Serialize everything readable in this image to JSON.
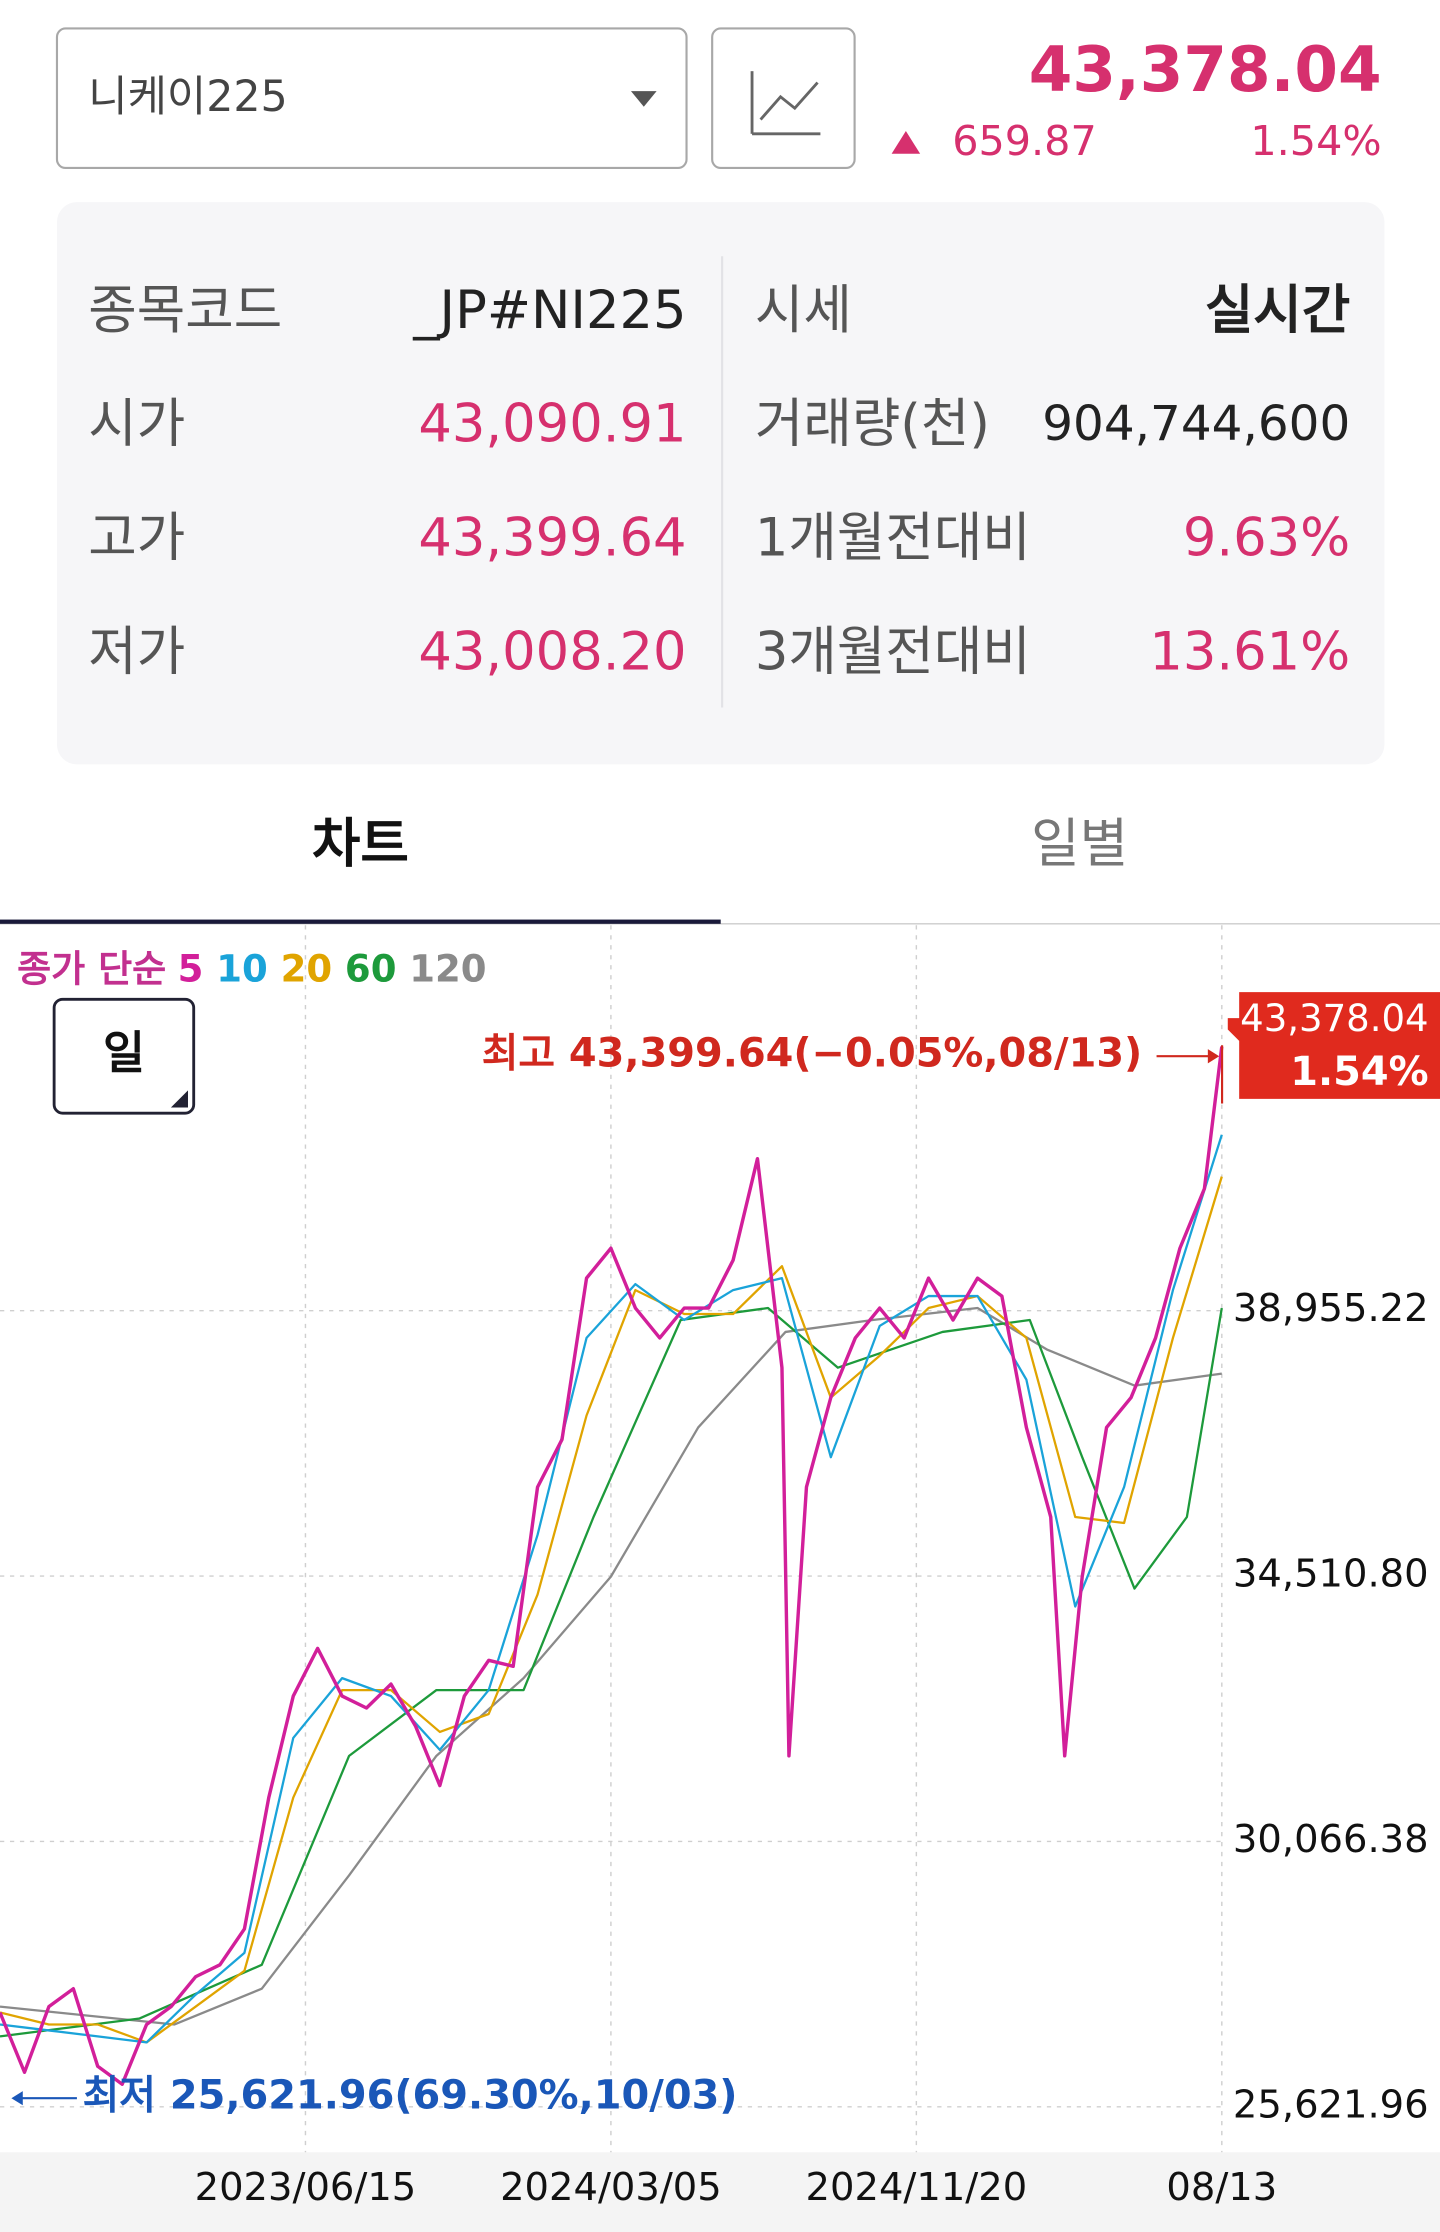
{
  "header": {
    "selector": "니케이225",
    "price": "43,378.04",
    "change": "659.87",
    "change_pct": "1.54%"
  },
  "info": {
    "rows": [
      [
        "종목코드",
        "_JP#NI225",
        "시세",
        "실시간"
      ],
      [
        "시가",
        "43,090.91",
        "거래량(천)",
        "904,744,600"
      ],
      [
        "고가",
        "43,399.64",
        "1개월전대비",
        "9.63%"
      ],
      [
        "저가",
        "43,008.20",
        "3개월전대비",
        "13.61%"
      ]
    ]
  },
  "tabs": [
    "차트",
    "일별"
  ],
  "chart_data": {
    "type": "line",
    "period_button": "일",
    "legend_title": "종가 단순",
    "grid": true,
    "xlim": [
      0,
      825
    ],
    "ylim": [
      24860,
      45410
    ],
    "xticks": [
      {
        "value": 175,
        "label": "2023/06/15"
      },
      {
        "value": 350,
        "label": "2024/03/05"
      },
      {
        "value": 525,
        "label": "2024/11/20"
      },
      {
        "value": 700,
        "label": "08/13"
      }
    ],
    "yticks": [
      {
        "value": 25621.96,
        "label": "25,621.96"
      },
      {
        "value": 30066.38,
        "label": "30,066.38"
      },
      {
        "value": 34510.8,
        "label": "34,510.80"
      },
      {
        "value": 38955.22,
        "label": "38,955.22"
      }
    ],
    "last_price": {
      "value": 43378.04,
      "label": "43,378.04",
      "change_label": "1.54%"
    },
    "high": {
      "value": 43399.64,
      "label": "최고 43,399.64(−0.05%,08/13)"
    },
    "low": {
      "value": 25621.96,
      "label": "최저 25,621.96(69.30%,10/03)"
    },
    "series": [
      {
        "name": "5",
        "color": "#d21f9a",
        "x": [
          0,
          14,
          28,
          42,
          56,
          70,
          84,
          98,
          112,
          126,
          140,
          154,
          168,
          182,
          196,
          210,
          224,
          238,
          252,
          266,
          280,
          294,
          308,
          322,
          336,
          350,
          364,
          378,
          392,
          406,
          420,
          434,
          448,
          452,
          462,
          476,
          490,
          504,
          518,
          532,
          546,
          560,
          574,
          588,
          602,
          610,
          620,
          634,
          648,
          662,
          676,
          690,
          700
        ],
        "values": [
          27200,
          26200,
          27300,
          27600,
          26300,
          26000,
          27000,
          27300,
          27800,
          28000,
          28600,
          30800,
          32500,
          33300,
          32500,
          32300,
          32700,
          32000,
          31000,
          32500,
          33100,
          33000,
          36000,
          36800,
          39500,
          40000,
          39000,
          38500,
          39000,
          39000,
          39800,
          41500,
          38000,
          31500,
          36000,
          37500,
          38500,
          39000,
          38500,
          39500,
          38800,
          39500,
          39200,
          37000,
          35500,
          31500,
          34500,
          37000,
          37500,
          38500,
          40000,
          41000,
          43378.04
        ]
      },
      {
        "name": "10",
        "color": "#1aa3d9",
        "x": [
          0,
          28,
          56,
          84,
          112,
          140,
          168,
          196,
          224,
          252,
          280,
          308,
          336,
          364,
          392,
          420,
          448,
          476,
          504,
          532,
          560,
          588,
          616,
          644,
          672,
          700
        ],
        "values": [
          27000,
          26900,
          26800,
          26700,
          27500,
          28200,
          31800,
          32800,
          32500,
          31600,
          32600,
          35200,
          38500,
          39400,
          38800,
          39300,
          39500,
          36500,
          38700,
          39200,
          39200,
          37800,
          34000,
          36000,
          39300,
          41900
        ]
      },
      {
        "name": "20",
        "color": "#e0a400",
        "x": [
          0,
          28,
          56,
          84,
          112,
          140,
          168,
          196,
          224,
          252,
          280,
          308,
          336,
          364,
          392,
          420,
          448,
          476,
          504,
          532,
          560,
          588,
          616,
          644,
          672,
          700
        ],
        "values": [
          27200,
          27000,
          27000,
          26700,
          27300,
          27900,
          30800,
          32600,
          32600,
          31900,
          32200,
          34200,
          37200,
          39300,
          38900,
          38900,
          39700,
          37500,
          38200,
          39000,
          39200,
          38500,
          35500,
          35400,
          38500,
          41200
        ]
      },
      {
        "name": "60",
        "color": "#1d9a3b",
        "x": [
          0,
          80,
          150,
          200,
          250,
          300,
          340,
          390,
          440,
          480,
          540,
          590,
          620,
          650,
          680,
          700
        ],
        "values": [
          26800,
          27100,
          28000,
          31500,
          32600,
          32600,
          35500,
          38800,
          39000,
          38000,
          38600,
          38800,
          36500,
          34300,
          35500,
          39000
        ]
      },
      {
        "name": "120",
        "color": "#8a8a8a",
        "x": [
          0,
          100,
          150,
          200,
          250,
          300,
          350,
          400,
          450,
          500,
          560,
          600,
          650,
          700
        ],
        "values": [
          27300,
          27000,
          27600,
          29500,
          31500,
          32800,
          34500,
          37000,
          38600,
          38800,
          39000,
          38300,
          37700,
          37900
        ]
      }
    ]
  }
}
